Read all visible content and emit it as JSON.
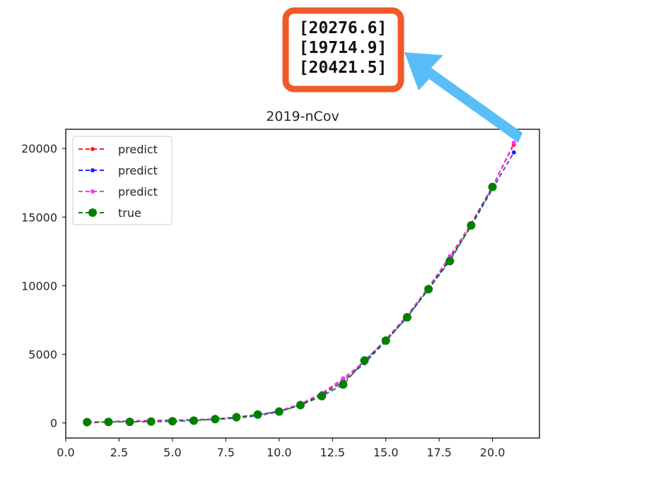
{
  "chart_data": {
    "type": "line",
    "title": "2019-nCov",
    "xlabel": "",
    "ylabel": "",
    "xlim": [
      0,
      22.2
    ],
    "ylim": [
      -1100,
      21400
    ],
    "xticks": [
      "0.0",
      "2.5",
      "5.0",
      "7.5",
      "10.0",
      "12.5",
      "15.0",
      "17.5",
      "20.0"
    ],
    "yticks": [
      "0",
      "5000",
      "10000",
      "15000",
      "20000"
    ],
    "grid": false,
    "legend_position": "upper-left",
    "x": [
      1,
      2,
      3,
      4,
      5,
      6,
      7,
      8,
      9,
      10,
      11,
      12,
      13,
      14,
      15,
      16,
      17,
      18,
      19,
      20,
      21
    ],
    "series": [
      {
        "name": "predict",
        "color": "#ff2020",
        "style": "dashed-small-dots",
        "values": [
          -20,
          80,
          130,
          160,
          200,
          230,
          280,
          380,
          560,
          850,
          1350,
          2100,
          3150,
          4450,
          6050,
          7800,
          9850,
          12050,
          14500,
          17200,
          20276.6
        ]
      },
      {
        "name": "predict",
        "color": "#2020ff",
        "style": "dashed-small-dots",
        "values": [
          30,
          90,
          120,
          150,
          180,
          210,
          250,
          350,
          520,
          820,
          1300,
          2050,
          3000,
          4350,
          5950,
          7700,
          9750,
          11900,
          14350,
          17050,
          19714.9
        ]
      },
      {
        "name": "predict",
        "color": "#ff30ff",
        "style": "dashed-small-dots",
        "values": [
          0,
          110,
          160,
          190,
          220,
          250,
          290,
          400,
          580,
          880,
          1400,
          2180,
          3250,
          4500,
          6100,
          7850,
          9900,
          12150,
          14550,
          17250,
          20421.5
        ]
      },
      {
        "name": "true",
        "color": "#008000",
        "style": "dashed-large-dots",
        "values": [
          60,
          70,
          80,
          100,
          120,
          170,
          280,
          420,
          610,
          830,
          1300,
          1950,
          2800,
          4550,
          6000,
          7700,
          9750,
          11800,
          14400,
          17200,
          null
        ]
      }
    ]
  },
  "callout": {
    "lines": [
      "[20276.6]",
      "[19714.9]",
      "[20421.5]"
    ],
    "border_color": "#f05a28",
    "arrow_color": "#5bbdf8"
  }
}
